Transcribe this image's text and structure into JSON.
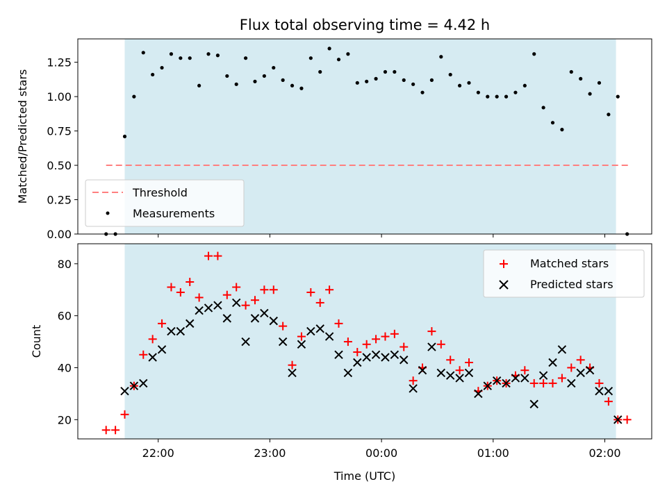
{
  "figure": {
    "title": "Flux total observing time = 4.42 h"
  },
  "chart_data": [
    {
      "type": "scatter",
      "ylabel": "Matched/Predicted stars",
      "ylim": [
        0,
        1.42
      ],
      "xlim": [
        21.28,
        2.42
      ],
      "x_axis": "time",
      "ytick_labels": [
        "0.00",
        "0.25",
        "0.50",
        "0.75",
        "1.00",
        "1.25"
      ],
      "ytick_values": [
        0,
        0.25,
        0.5,
        0.75,
        1.0,
        1.25
      ],
      "shaded_span": {
        "from": "21:42",
        "to": "02:06",
        "color": "#add8e6"
      },
      "threshold": {
        "name": "Threshold",
        "y": 0.5,
        "x_from": "21:32",
        "x_to": "02:13",
        "color": "#ff7f7f",
        "style": "dashed"
      },
      "series": [
        {
          "name": "Measurements",
          "color": "#000000",
          "marker": "dot",
          "x": [
            "21:32",
            "21:37",
            "21:42",
            "21:47",
            "21:52",
            "21:57",
            "22:02",
            "22:07",
            "22:12",
            "22:17",
            "22:22",
            "22:27",
            "22:32",
            "22:37",
            "22:42",
            "22:47",
            "22:52",
            "22:57",
            "23:02",
            "23:07",
            "23:12",
            "23:17",
            "23:22",
            "23:27",
            "23:32",
            "23:37",
            "23:42",
            "23:47",
            "23:52",
            "23:57",
            "00:02",
            "00:07",
            "00:12",
            "00:17",
            "00:22",
            "00:27",
            "00:32",
            "00:37",
            "00:42",
            "00:47",
            "00:52",
            "00:57",
            "01:02",
            "01:07",
            "01:12",
            "01:17",
            "01:22",
            "01:27",
            "01:32",
            "01:37",
            "01:42",
            "01:47",
            "01:52",
            "01:57",
            "02:02",
            "02:07",
            "02:12"
          ],
          "y": [
            0.0,
            0.0,
            0.71,
            1.0,
            1.32,
            1.16,
            1.21,
            1.31,
            1.28,
            1.28,
            1.08,
            1.31,
            1.3,
            1.15,
            1.09,
            1.28,
            1.11,
            1.15,
            1.21,
            1.12,
            1.08,
            1.06,
            1.28,
            1.18,
            1.35,
            1.27,
            1.31,
            1.1,
            1.11,
            1.13,
            1.18,
            1.18,
            1.12,
            1.09,
            1.03,
            1.12,
            1.29,
            1.16,
            1.08,
            1.1,
            1.03,
            1.0,
            1.0,
            1.0,
            1.03,
            1.08,
            1.31,
            0.92,
            0.81,
            0.76,
            1.18,
            1.13,
            1.02,
            1.1,
            0.87,
            1.0,
            0.0
          ]
        }
      ],
      "legend": {
        "placement": "lower-left",
        "entries": [
          "Threshold",
          "Measurements"
        ]
      }
    },
    {
      "type": "scatter",
      "ylabel": "Count",
      "xlabel": "Time (UTC)",
      "ylim": [
        12.6,
        87.7
      ],
      "xlim": [
        21.28,
        2.42
      ],
      "x_axis": "time",
      "ytick_labels": [
        "20",
        "40",
        "60",
        "80"
      ],
      "ytick_values": [
        20,
        40,
        60,
        80
      ],
      "xtick_labels": [
        "22:00",
        "23:00",
        "00:00",
        "01:00",
        "02:00"
      ],
      "shaded_span": {
        "from": "21:42",
        "to": "02:06",
        "color": "#add8e6"
      },
      "series": [
        {
          "name": "Matched stars",
          "color": "#ff0000",
          "marker": "plus",
          "x": [
            "21:32",
            "21:37",
            "21:42",
            "21:47",
            "21:52",
            "21:57",
            "22:02",
            "22:07",
            "22:12",
            "22:17",
            "22:22",
            "22:27",
            "22:32",
            "22:37",
            "22:42",
            "22:47",
            "22:52",
            "22:57",
            "23:02",
            "23:07",
            "23:12",
            "23:17",
            "23:22",
            "23:27",
            "23:32",
            "23:37",
            "23:42",
            "23:47",
            "23:52",
            "23:57",
            "00:02",
            "00:07",
            "00:12",
            "00:17",
            "00:22",
            "00:27",
            "00:32",
            "00:37",
            "00:42",
            "00:47",
            "00:52",
            "00:57",
            "01:02",
            "01:07",
            "01:12",
            "01:17",
            "01:22",
            "01:27",
            "01:32",
            "01:37",
            "01:42",
            "01:47",
            "01:52",
            "01:57",
            "02:02",
            "02:07",
            "02:12"
          ],
          "y": [
            16,
            16,
            22,
            33,
            45,
            51,
            57,
            71,
            69,
            73,
            67,
            83,
            83,
            68,
            71,
            64,
            66,
            70,
            70,
            56,
            41,
            52,
            69,
            65,
            70,
            57,
            50,
            46,
            49,
            51,
            52,
            53,
            48,
            35,
            40,
            54,
            49,
            43,
            39,
            42,
            31,
            33,
            35,
            34,
            37,
            39,
            34,
            34,
            34,
            36,
            40,
            43,
            40,
            34,
            27,
            20,
            20
          ]
        },
        {
          "name": "Predicted stars",
          "color": "#000000",
          "marker": "x",
          "x": [
            "21:42",
            "21:47",
            "21:52",
            "21:57",
            "22:02",
            "22:07",
            "22:12",
            "22:17",
            "22:22",
            "22:27",
            "22:32",
            "22:37",
            "22:42",
            "22:47",
            "22:52",
            "22:57",
            "23:02",
            "23:07",
            "23:12",
            "23:17",
            "23:22",
            "23:27",
            "23:32",
            "23:37",
            "23:42",
            "23:47",
            "23:52",
            "23:57",
            "00:02",
            "00:07",
            "00:12",
            "00:17",
            "00:22",
            "00:27",
            "00:32",
            "00:37",
            "00:42",
            "00:47",
            "00:52",
            "00:57",
            "01:02",
            "01:07",
            "01:12",
            "01:17",
            "01:22",
            "01:27",
            "01:32",
            "01:37",
            "01:42",
            "01:47",
            "01:52",
            "01:57",
            "02:02",
            "02:07"
          ],
          "y": [
            31,
            33,
            34,
            44,
            47,
            54,
            54,
            57,
            62,
            63,
            64,
            59,
            65,
            50,
            59,
            61,
            58,
            50,
            38,
            49,
            54,
            55,
            52,
            45,
            38,
            42,
            44,
            45,
            44,
            45,
            43,
            32,
            39,
            48,
            38,
            37,
            36,
            38,
            30,
            33,
            35,
            34,
            36,
            36,
            26,
            37,
            42,
            47,
            34,
            38,
            39,
            31,
            31,
            20
          ]
        }
      ],
      "legend": {
        "placement": "top-right",
        "entries": [
          "Matched stars",
          "Predicted stars"
        ]
      }
    }
  ]
}
